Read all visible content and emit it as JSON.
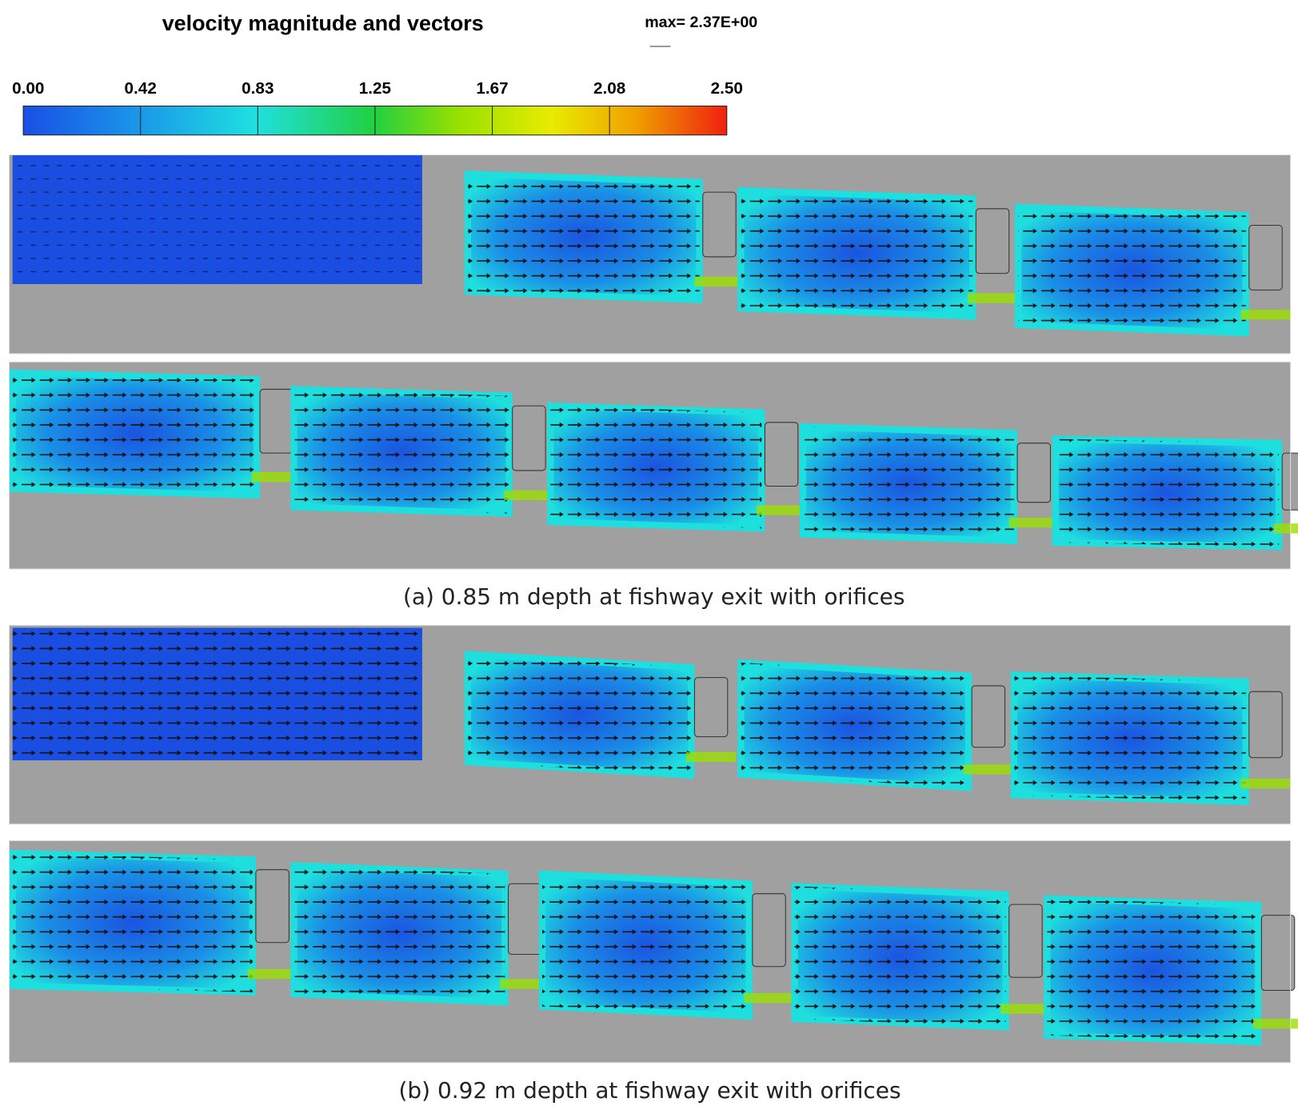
{
  "title": "velocity magnitude and vectors",
  "max_label": "max= 2.37E+00",
  "colorbar": {
    "ticks": [
      "0.00",
      "0.42",
      "0.83",
      "1.25",
      "1.67",
      "2.08",
      "2.50"
    ]
  },
  "captions": [
    "(a) 0.85 m depth at fishway exit with orifices",
    "(b) 0.92 m depth at fishway exit with orifices"
  ]
}
